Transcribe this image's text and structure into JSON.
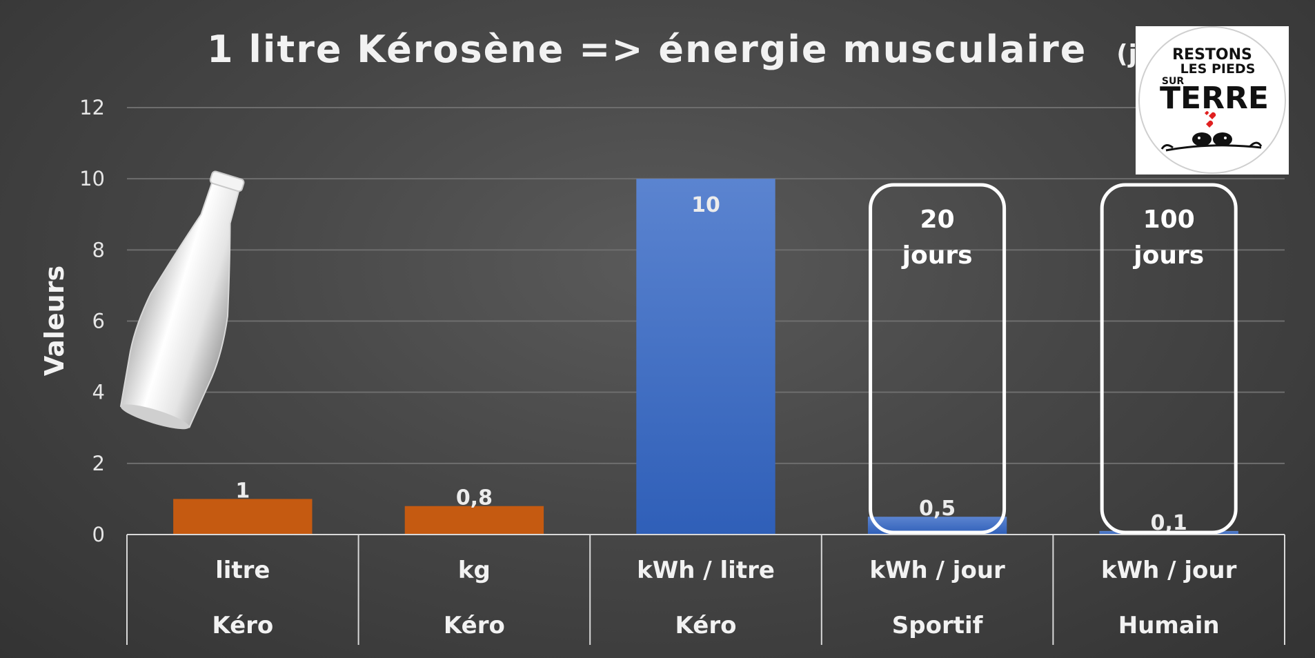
{
  "chart_data": {
    "type": "bar",
    "title": "1 litre Kérosène => énergie musculaire",
    "title_suffix": "(jours)",
    "ylabel": "Valeurs",
    "xlabel": "",
    "ylim": [
      0,
      12
    ],
    "yticks": [
      0,
      2,
      4,
      6,
      8,
      10,
      12
    ],
    "grid": true,
    "categories": [
      {
        "unit": "litre",
        "group": "Kéro"
      },
      {
        "unit": "kg",
        "group": "Kéro"
      },
      {
        "unit": "kWh / litre",
        "group": "Kéro"
      },
      {
        "unit": "kWh / jour",
        "group": "Sportif"
      },
      {
        "unit": "kWh / jour",
        "group": "Humain"
      }
    ],
    "values": [
      1,
      0.8,
      10,
      0.5,
      0.1
    ],
    "value_labels": [
      "1",
      "0,8",
      "10",
      "0,5",
      "0,1"
    ],
    "bar_colors": [
      "#c55a11",
      "#c55a11",
      "#4472c4",
      "#4472c4",
      "#4472c4"
    ],
    "callouts": [
      {
        "category_index": 3,
        "line1": "20",
        "line2": "jours"
      },
      {
        "category_index": 4,
        "line1": "100",
        "line2": "jours"
      }
    ]
  },
  "logo": {
    "line1": "RESTONS",
    "line2": "LES PIEDS",
    "line3": "SUR",
    "line4": "TERRE"
  },
  "bottle_icon": "glass-bottle-icon"
}
